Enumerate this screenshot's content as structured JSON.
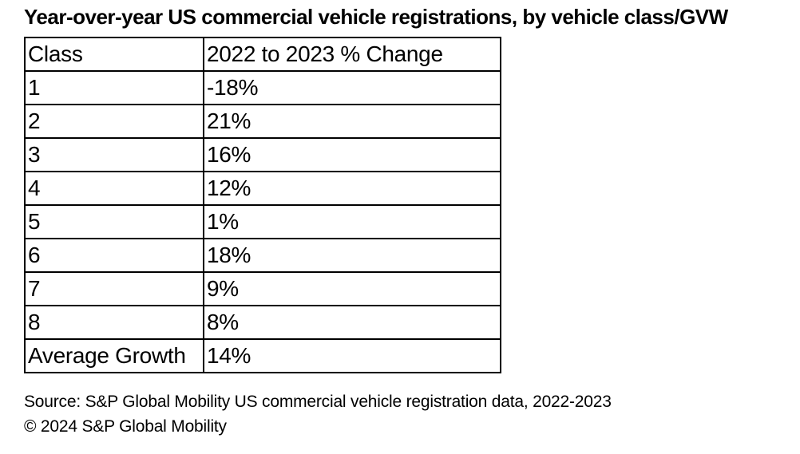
{
  "title": "Year-over-year US commercial vehicle registrations, by vehicle class/GVW",
  "table": {
    "headers": {
      "class": "Class",
      "change": "2022 to 2023 % Change"
    },
    "rows": [
      {
        "class": "1",
        "change": "-18%"
      },
      {
        "class": "2",
        "change": "21%"
      },
      {
        "class": "3",
        "change": "16%"
      },
      {
        "class": "4",
        "change": "12%"
      },
      {
        "class": "5",
        "change": "1%"
      },
      {
        "class": "6",
        "change": "18%"
      },
      {
        "class": "7",
        "change": "9%"
      },
      {
        "class": "8",
        "change": "8%"
      },
      {
        "class": "Average Growth",
        "change": "14%"
      }
    ]
  },
  "footer": {
    "source": "Source: S&P Global Mobility US commercial vehicle registration data, 2022-2023",
    "copyright": "© 2024 S&P Global Mobility"
  },
  "colors": {
    "text": "#000000",
    "background": "#ffffff",
    "border": "#000000"
  },
  "chart_data": {
    "type": "table",
    "title": "Year-over-year US commercial vehicle registrations, by vehicle class/GVW",
    "columns": [
      "Class",
      "2022 to 2023 % Change"
    ],
    "categories": [
      "1",
      "2",
      "3",
      "4",
      "5",
      "6",
      "7",
      "8",
      "Average Growth"
    ],
    "values_pct": [
      -18,
      21,
      16,
      12,
      1,
      18,
      9,
      8,
      14
    ],
    "source": "Source: S&P Global Mobility US commercial vehicle registration data, 2022-2023",
    "copyright": "© 2024 S&P Global Mobility"
  }
}
